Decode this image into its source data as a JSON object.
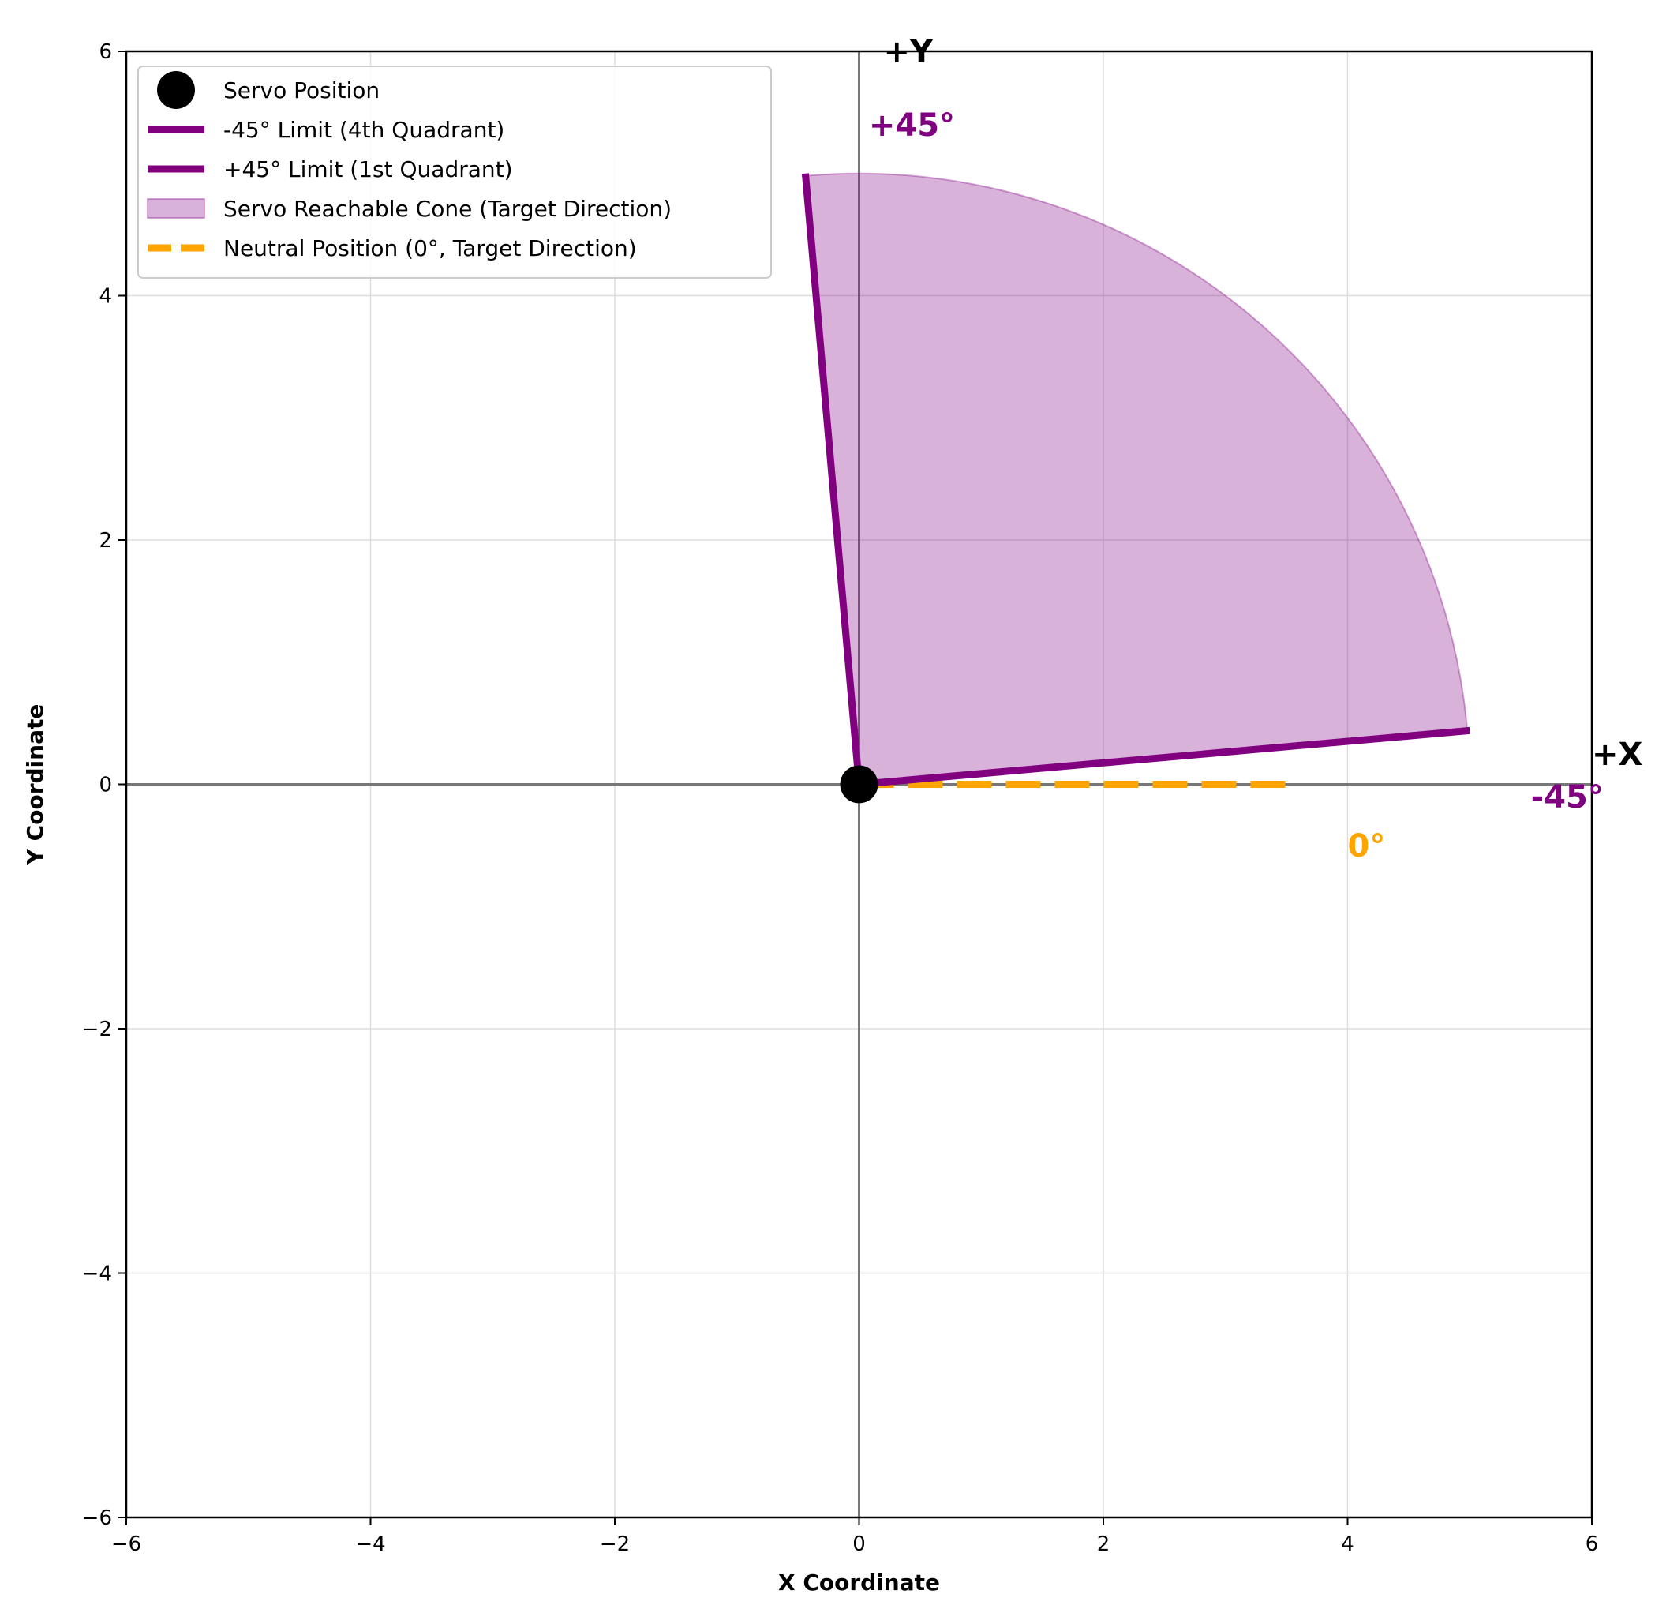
{
  "chart_data": {
    "type": "line",
    "xlabel": "X Coordinate",
    "ylabel": "Y Coordinate",
    "xlim": [
      -6,
      6
    ],
    "ylim": [
      -6,
      6
    ],
    "xticks": [
      -6,
      -4,
      -2,
      0,
      2,
      4,
      6
    ],
    "yticks": [
      -6,
      -4,
      -2,
      0,
      2,
      4,
      6
    ],
    "xtick_labels": [
      "−6",
      "−4",
      "−2",
      "0",
      "2",
      "4",
      "6"
    ],
    "ytick_labels": [
      "−6",
      "−4",
      "−2",
      "0",
      "2",
      "4",
      "6"
    ],
    "grid": true,
    "legend_position": "upper-left",
    "series": [
      {
        "name": "Servo Position",
        "kind": "point",
        "color": "#000000",
        "x": [
          0
        ],
        "y": [
          0
        ]
      },
      {
        "name": "-45° Limit (4th Quadrant)",
        "kind": "line",
        "color": "#800080",
        "x": [
          0,
          5.0
        ],
        "y": [
          0,
          0.44
        ]
      },
      {
        "name": "+45° Limit (1st Quadrant)",
        "kind": "line",
        "color": "#800080",
        "x": [
          0,
          -0.44
        ],
        "y": [
          0,
          5.0
        ]
      },
      {
        "name": "Servo Reachable Cone (Target Direction)",
        "kind": "wedge",
        "color": "#800080",
        "center": [
          0,
          0
        ],
        "radius": 5.0,
        "start_angle_deg": 5,
        "end_angle_deg": 95
      },
      {
        "name": "Neutral Position (0°, Target Direction)",
        "kind": "dashed-line",
        "color": "#FFA500",
        "x": [
          0,
          3.5
        ],
        "y": [
          0,
          0
        ]
      }
    ],
    "annotations": [
      {
        "id": "plus_y",
        "text": "+Y",
        "x": 0.2,
        "y": 6.0,
        "color": "#000000"
      },
      {
        "id": "plus_x",
        "text": "+X",
        "x": 6.0,
        "y": 0.25,
        "color": "#000000"
      },
      {
        "id": "plus45",
        "text": "+45°",
        "x": 0.08,
        "y": 5.4,
        "color": "#800080"
      },
      {
        "id": "minus45",
        "text": "-45°",
        "x": 5.5,
        "y": -0.1,
        "color": "#800080"
      },
      {
        "id": "zero",
        "text": "0°",
        "x": 4.0,
        "y": -0.5,
        "color": "#FFA500"
      }
    ]
  }
}
